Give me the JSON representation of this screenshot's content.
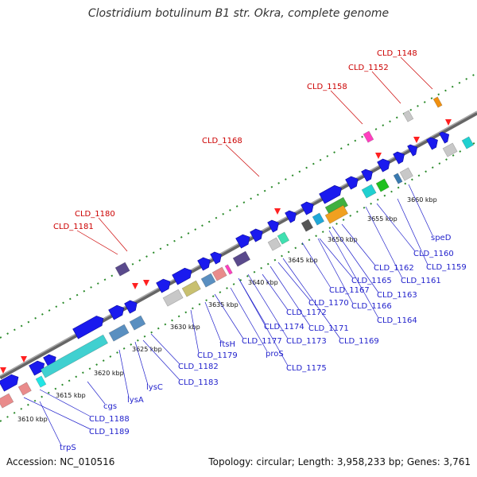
{
  "title": "Clostridium botulinum B1 str. Okra, complete genome",
  "accession": "Accession: NC_010516",
  "summary": "Topology: circular; Length: 3,958,233 bp; Genes: 3,761",
  "kbp_labels": [
    "3610 kbp",
    "3615 kbp",
    "3620 kbp",
    "3625 kbp",
    "3630 kbp",
    "3635 kbp",
    "3640 kbp",
    "3645 kbp",
    "3650 kbp",
    "3655 kbp",
    "3660 kbp"
  ],
  "gene_labels_blue": [
    "trpS",
    "CLD_1189",
    "CLD_1188",
    "cgs",
    "lysA",
    "lysC",
    "CLD_1183",
    "CLD_1182",
    "CLD_1179",
    "ftsH",
    "CLD_1177",
    "proS",
    "CLD_1175",
    "CLD_1174",
    "CLD_1173",
    "CLD_1172",
    "CLD_1171",
    "CLD_1170",
    "CLD_1169",
    "CLD_1167",
    "CLD_1166",
    "CLD_1165",
    "CLD_1164",
    "CLD_1163",
    "CLD_1162",
    "CLD_1161",
    "CLD_1160",
    "CLD_1159",
    "speD"
  ],
  "gene_labels_red": [
    "CLD_1181",
    "CLD_1180",
    "CLD_1168",
    "CLD_1158",
    "CLD_1152",
    "CLD_1148"
  ],
  "colors": {
    "backbone": "#888888",
    "cds_forward": "#1a1aee",
    "tick_green": "#2a8a2a",
    "label_blue": "#2222cc",
    "label_red": "#cc0000"
  }
}
